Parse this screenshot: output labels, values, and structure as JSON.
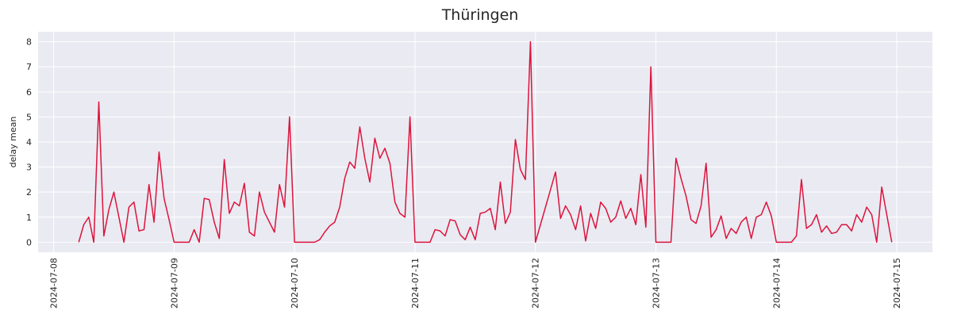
{
  "chart_data": {
    "type": "line",
    "title": "Thüringen",
    "ylabel": "delay mean",
    "color": "#dc143c",
    "grid": true,
    "xlim": [
      "2024-07-07 20:54",
      "2024-07-15 07:06"
    ],
    "xticks": [
      "2024-07-08",
      "2024-07-09",
      "2024-07-10",
      "2024-07-11",
      "2024-07-12",
      "2024-07-13",
      "2024-07-14",
      "2024-07-15"
    ],
    "ylim": [
      -0.4,
      8.4
    ],
    "yticks": [
      0,
      1,
      2,
      3,
      4,
      5,
      6,
      7,
      8
    ],
    "x": [
      "2024-07-08 05:00",
      "2024-07-08 06:00",
      "2024-07-08 07:00",
      "2024-07-08 08:00",
      "2024-07-08 09:00",
      "2024-07-08 10:00",
      "2024-07-08 11:00",
      "2024-07-08 12:00",
      "2024-07-08 13:00",
      "2024-07-08 14:00",
      "2024-07-08 15:00",
      "2024-07-08 16:00",
      "2024-07-08 17:00",
      "2024-07-08 18:00",
      "2024-07-08 19:00",
      "2024-07-08 20:00",
      "2024-07-08 21:00",
      "2024-07-08 22:00",
      "2024-07-08 23:00",
      "2024-07-09 00:00",
      "2024-07-09 01:00",
      "2024-07-09 02:00",
      "2024-07-09 03:00",
      "2024-07-09 04:00",
      "2024-07-09 05:00",
      "2024-07-09 06:00",
      "2024-07-09 07:00",
      "2024-07-09 08:00",
      "2024-07-09 09:00",
      "2024-07-09 10:00",
      "2024-07-09 11:00",
      "2024-07-09 12:00",
      "2024-07-09 13:00",
      "2024-07-09 14:00",
      "2024-07-09 15:00",
      "2024-07-09 16:00",
      "2024-07-09 17:00",
      "2024-07-09 18:00",
      "2024-07-09 19:00",
      "2024-07-09 20:00",
      "2024-07-09 21:00",
      "2024-07-09 22:00",
      "2024-07-09 23:00",
      "2024-07-10 00:00",
      "2024-07-10 01:00",
      "2024-07-10 02:00",
      "2024-07-10 03:00",
      "2024-07-10 04:00",
      "2024-07-10 05:00",
      "2024-07-10 06:00",
      "2024-07-10 07:00",
      "2024-07-10 08:00",
      "2024-07-10 09:00",
      "2024-07-10 10:00",
      "2024-07-10 11:00",
      "2024-07-10 12:00",
      "2024-07-10 13:00",
      "2024-07-10 14:00",
      "2024-07-10 15:00",
      "2024-07-10 16:00",
      "2024-07-10 17:00",
      "2024-07-10 18:00",
      "2024-07-10 19:00",
      "2024-07-10 20:00",
      "2024-07-10 21:00",
      "2024-07-10 22:00",
      "2024-07-10 23:00",
      "2024-07-11 00:00",
      "2024-07-11 01:00",
      "2024-07-11 02:00",
      "2024-07-11 03:00",
      "2024-07-11 04:00",
      "2024-07-11 05:00",
      "2024-07-11 06:00",
      "2024-07-11 07:00",
      "2024-07-11 08:00",
      "2024-07-11 09:00",
      "2024-07-11 10:00",
      "2024-07-11 11:00",
      "2024-07-11 12:00",
      "2024-07-11 13:00",
      "2024-07-11 14:00",
      "2024-07-11 15:00",
      "2024-07-11 16:00",
      "2024-07-11 17:00",
      "2024-07-11 18:00",
      "2024-07-11 19:00",
      "2024-07-11 20:00",
      "2024-07-11 21:00",
      "2024-07-11 22:00",
      "2024-07-11 23:00",
      "2024-07-12 00:00",
      "2024-07-12 01:00",
      "2024-07-12 02:00",
      "2024-07-12 03:00",
      "2024-07-12 04:00",
      "2024-07-12 05:00",
      "2024-07-12 06:00",
      "2024-07-12 07:00",
      "2024-07-12 08:00",
      "2024-07-12 09:00",
      "2024-07-12 10:00",
      "2024-07-12 11:00",
      "2024-07-12 12:00",
      "2024-07-12 13:00",
      "2024-07-12 14:00",
      "2024-07-12 15:00",
      "2024-07-12 16:00",
      "2024-07-12 17:00",
      "2024-07-12 18:00",
      "2024-07-12 19:00",
      "2024-07-12 20:00",
      "2024-07-12 21:00",
      "2024-07-12 22:00",
      "2024-07-12 23:00",
      "2024-07-13 00:00",
      "2024-07-13 01:00",
      "2024-07-13 02:00",
      "2024-07-13 03:00",
      "2024-07-13 04:00",
      "2024-07-13 05:00",
      "2024-07-13 06:00",
      "2024-07-13 07:00",
      "2024-07-13 08:00",
      "2024-07-13 09:00",
      "2024-07-13 10:00",
      "2024-07-13 11:00",
      "2024-07-13 12:00",
      "2024-07-13 13:00",
      "2024-07-13 14:00",
      "2024-07-13 15:00",
      "2024-07-13 16:00",
      "2024-07-13 17:00",
      "2024-07-13 18:00",
      "2024-07-13 19:00",
      "2024-07-13 20:00",
      "2024-07-13 21:00",
      "2024-07-13 22:00",
      "2024-07-13 23:00",
      "2024-07-14 00:00",
      "2024-07-14 01:00",
      "2024-07-14 02:00",
      "2024-07-14 03:00",
      "2024-07-14 04:00",
      "2024-07-14 05:00",
      "2024-07-14 06:00",
      "2024-07-14 07:00",
      "2024-07-14 08:00",
      "2024-07-14 09:00",
      "2024-07-14 10:00",
      "2024-07-14 11:00",
      "2024-07-14 12:00",
      "2024-07-14 13:00",
      "2024-07-14 14:00",
      "2024-07-14 15:00",
      "2024-07-14 16:00",
      "2024-07-14 17:00",
      "2024-07-14 18:00",
      "2024-07-14 19:00",
      "2024-07-14 20:00",
      "2024-07-14 21:00",
      "2024-07-14 22:00",
      "2024-07-14 23:00"
    ],
    "values": [
      0,
      0.7,
      1.0,
      0,
      5.6,
      0.25,
      1.3,
      2.0,
      1.0,
      0,
      1.4,
      1.6,
      0.45,
      0.5,
      2.3,
      0.8,
      3.6,
      1.75,
      0.9,
      0,
      0,
      0,
      0,
      0.5,
      0,
      1.75,
      1.7,
      0.8,
      0.15,
      3.3,
      1.15,
      1.6,
      1.45,
      2.35,
      0.4,
      0.25,
      2.0,
      1.2,
      0.8,
      0.4,
      2.3,
      1.4,
      5.0,
      0,
      0,
      0,
      0,
      0,
      0.1,
      0.4,
      0.65,
      0.8,
      1.4,
      2.55,
      3.2,
      2.95,
      4.6,
      3.35,
      2.4,
      4.15,
      3.35,
      3.75,
      3.15,
      1.6,
      1.15,
      1.0,
      5.0,
      0,
      0,
      0,
      0,
      0.5,
      0.45,
      0.25,
      0.9,
      0.85,
      0.3,
      0.1,
      0.6,
      0.1,
      1.15,
      1.2,
      1.35,
      0.5,
      2.4,
      0.75,
      1.2,
      4.1,
      2.9,
      2.5,
      8.0,
      0,
      0.7,
      1.4,
      2.1,
      2.8,
      0.95,
      1.45,
      1.1,
      0.5,
      1.45,
      0.05,
      1.15,
      0.55,
      1.6,
      1.35,
      0.8,
      1.0,
      1.65,
      0.95,
      1.35,
      0.7,
      2.7,
      0.6,
      7.0,
      0,
      0,
      0,
      0,
      3.35,
      2.55,
      1.85,
      0.9,
      0.75,
      1.45,
      3.15,
      0.2,
      0.5,
      1.05,
      0.15,
      0.55,
      0.35,
      0.8,
      1.0,
      0.15,
      1.0,
      1.1,
      1.6,
      1.05,
      0,
      0,
      0,
      0,
      0.25,
      2.5,
      0.55,
      0.7,
      1.1,
      0.4,
      0.65,
      0.35,
      0.4,
      0.7,
      0.7,
      0.45,
      1.1,
      0.8,
      1.4,
      1.1,
      0,
      2.2,
      1.1,
      0
    ]
  }
}
